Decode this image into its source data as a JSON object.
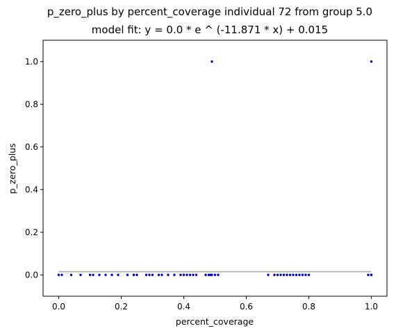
{
  "chart_data": {
    "type": "scatter",
    "title": "p_zero_plus by percent_coverage individual 72 from group 5.0",
    "subtitle": "model fit: y = 0.0 * e ^ (-11.871 * x) + 0.015",
    "xlabel": "percent_coverage",
    "ylabel": "p_zero_plus",
    "xlim": [
      -0.05,
      1.05
    ],
    "ylim": [
      -0.1,
      1.1
    ],
    "xticks": [
      0.0,
      0.2,
      0.4,
      0.6,
      0.8,
      1.0
    ],
    "xtick_labels": [
      "0.0",
      "0.2",
      "0.4",
      "0.6",
      "0.8",
      "1.0"
    ],
    "yticks": [
      0.0,
      0.2,
      0.4,
      0.6,
      0.8,
      1.0
    ],
    "ytick_labels": [
      "0.0",
      "0.2",
      "0.4",
      "0.6",
      "0.8",
      "1.0"
    ],
    "grid": false,
    "colors": {
      "points": "#0000cc",
      "fit_line": "#b0b0b0"
    },
    "points": {
      "x": [
        0.0,
        0.01,
        0.04,
        0.07,
        0.1,
        0.11,
        0.13,
        0.15,
        0.17,
        0.19,
        0.22,
        0.24,
        0.25,
        0.28,
        0.29,
        0.3,
        0.32,
        0.33,
        0.35,
        0.37,
        0.39,
        0.4,
        0.41,
        0.42,
        0.43,
        0.44,
        0.47,
        0.48,
        0.485,
        0.49,
        0.5,
        0.51,
        0.67,
        0.69,
        0.7,
        0.71,
        0.72,
        0.73,
        0.74,
        0.75,
        0.76,
        0.77,
        0.78,
        0.79,
        0.8,
        0.99,
        1.0,
        1.0,
        0.49,
        1.0
      ],
      "y": [
        0,
        0,
        0,
        0,
        0,
        0,
        0,
        0,
        0,
        0,
        0,
        0,
        0,
        0,
        0,
        0,
        0,
        0,
        0,
        0,
        0,
        0,
        0,
        0,
        0,
        0,
        0,
        0,
        0,
        0,
        0,
        0,
        0,
        0,
        0,
        0,
        0,
        0,
        0,
        0,
        0,
        0,
        0,
        0,
        0,
        0,
        0,
        0,
        1.0,
        1.0
      ]
    },
    "fit": {
      "a": 0.0,
      "b": -11.871,
      "c": 0.015,
      "x_range": [
        0.0,
        1.0
      ]
    }
  }
}
